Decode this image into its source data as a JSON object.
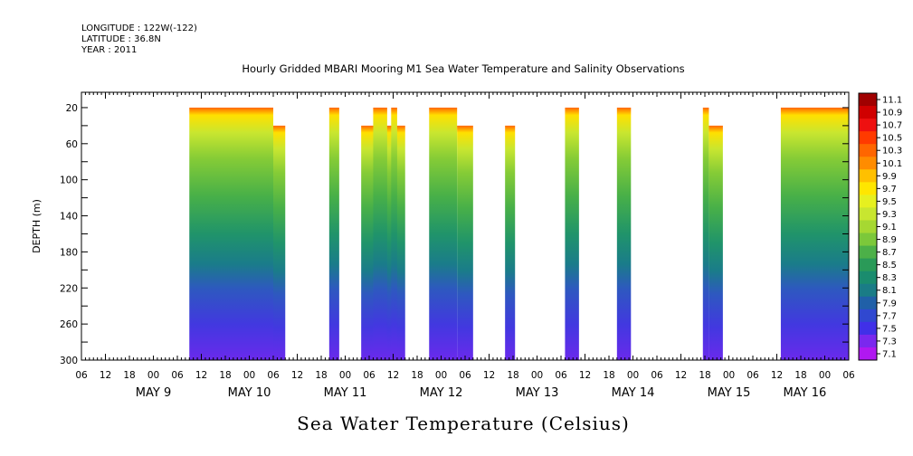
{
  "meta": {
    "longitude": "LONGITUDE : 122W(-122)",
    "latitude": "LATITUDE : 36.8N",
    "year": "YEAR : 2011"
  },
  "chart_data": {
    "type": "heatmap",
    "title": "Hourly Gridded MBARI Mooring M1 Sea Water Temperature and Salinity Observations",
    "ylabel": "DEPTH (m)",
    "xlabel": "",
    "footer": "Sea Water Temperature (Celsius)",
    "x_range_hours": [
      0,
      192
    ],
    "x_ref": "2011-05-08T18:00",
    "ylim": [
      0,
      300
    ],
    "y_inverted": true,
    "y_ticks": [
      20,
      60,
      100,
      140,
      180,
      220,
      260,
      300
    ],
    "x_hour_ticks": [
      "06",
      "12",
      "18",
      "00",
      "06",
      "12",
      "18",
      "00",
      "06",
      "12",
      "18",
      "00",
      "06",
      "12",
      "18",
      "00",
      "06",
      "12",
      "18",
      "00",
      "06",
      "12",
      "18",
      "00",
      "06",
      "12",
      "18",
      "00",
      "06",
      "12",
      "18",
      "00",
      "06"
    ],
    "x_day_labels": [
      {
        "label": "MAY  9",
        "hour": 18
      },
      {
        "label": "MAY 10",
        "hour": 42
      },
      {
        "label": "MAY 11",
        "hour": 66
      },
      {
        "label": "MAY 12",
        "hour": 90
      },
      {
        "label": "MAY 13",
        "hour": 114
      },
      {
        "label": "MAY 14",
        "hour": 138
      },
      {
        "label": "MAY 15",
        "hour": 162
      },
      {
        "label": "MAY 16",
        "hour": 181
      }
    ],
    "colorbar_levels": [
      "11.1",
      "10.9",
      "10.7",
      "10.5",
      "10.3",
      "10.1",
      "9.9",
      "9.7",
      "9.5",
      "9.3",
      "9.1",
      "8.9",
      "8.7",
      "8.5",
      "8.3",
      "8.1",
      "7.9",
      "7.7",
      "7.5",
      "7.3",
      "7.1"
    ],
    "colorbar_colors": [
      "#a00000",
      "#d00000",
      "#ee1010",
      "#ff3a00",
      "#ff6600",
      "#ff8c00",
      "#ffc000",
      "#ffe600",
      "#e6f020",
      "#c8e630",
      "#a6d832",
      "#7cc83a",
      "#4cb048",
      "#2a9a58",
      "#1a8c6e",
      "#1a7c86",
      "#2060a8",
      "#3048d0",
      "#4030e8",
      "#7a28ee",
      "#b018f0"
    ],
    "blocks": [
      {
        "start_hour": 27,
        "end_hour": 51,
        "top_depth": 20,
        "top_depth_end": 40,
        "step_hour": 48
      },
      {
        "start_hour": 62,
        "end_hour": 64.5,
        "top_depth": 20
      },
      {
        "start_hour": 70,
        "end_hour": 81,
        "top_depth": 40
      },
      {
        "start_hour": 73,
        "end_hour": 76.5,
        "top_depth": 20
      },
      {
        "start_hour": 77.5,
        "end_hour": 79,
        "top_depth": 20
      },
      {
        "start_hour": 87,
        "end_hour": 98,
        "top_depth": 20,
        "top_depth_end": 40,
        "step_hour": 94
      },
      {
        "start_hour": 106,
        "end_hour": 108.5,
        "top_depth": 40
      },
      {
        "start_hour": 121,
        "end_hour": 124.5,
        "top_depth": 20
      },
      {
        "start_hour": 134,
        "end_hour": 137.5,
        "top_depth": 20
      },
      {
        "start_hour": 155.5,
        "end_hour": 157,
        "top_depth": 20
      },
      {
        "start_hour": 157,
        "end_hour": 160.5,
        "top_depth": 40
      },
      {
        "start_hour": 175,
        "end_hour": 194,
        "top_depth": 20
      }
    ]
  }
}
